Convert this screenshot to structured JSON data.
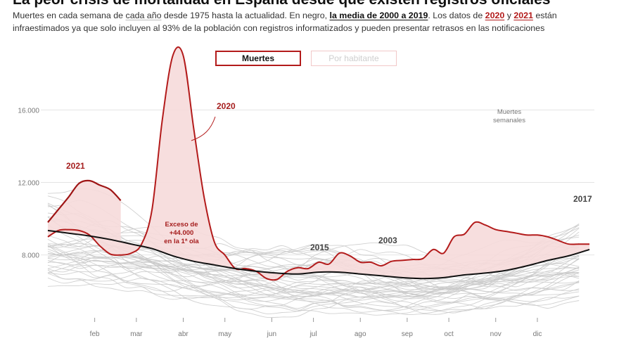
{
  "title": "La peor crisis de mortalidad en España desde que existen registros oficiales",
  "subtitle": {
    "p1": "Muertes en cada semana de ",
    "link_years": "cada año",
    "p2": " desde 1975 hasta la actualidad. En negro, ",
    "link_mean": "la media de 2000 a 2019",
    "p3": ". Los datos de ",
    "link_2020": "2020",
    "p4": " y ",
    "link_2021": "2021",
    "p5": " están infraestimados ya que solo incluyen al 93% de la población con registros informatizados y pueden presentar retrasos en las notificaciones"
  },
  "toggles": {
    "deaths": "Muertes",
    "per_capita": "Por habitante"
  },
  "colors": {
    "highlight_red": "#b31b1b",
    "mean_black": "#111111",
    "background_years": "#c9c9c9",
    "excess_fill": "#f6dada"
  },
  "chart_data": {
    "type": "line",
    "ylim": [
      5000,
      17800
    ],
    "y_ticks": [
      {
        "value": 8000,
        "label": "8.000"
      },
      {
        "value": 12000,
        "label": "12.000"
      },
      {
        "value": 16000,
        "label": "16.000"
      }
    ],
    "x_ticks": [
      {
        "week": 5.5,
        "label": "feb"
      },
      {
        "week": 9.5,
        "label": "mar"
      },
      {
        "week": 14,
        "label": "abr"
      },
      {
        "week": 18,
        "label": "may"
      },
      {
        "week": 22.5,
        "label": "jun"
      },
      {
        "week": 26.5,
        "label": "jul"
      },
      {
        "week": 31,
        "label": "ago"
      },
      {
        "week": 35.5,
        "label": "sep"
      },
      {
        "week": 39.5,
        "label": "oct"
      },
      {
        "week": 44,
        "label": "nov"
      },
      {
        "week": 48,
        "label": "dic"
      }
    ],
    "xlim": [
      1,
      53
    ],
    "series": [
      {
        "name": "2020",
        "x": [
          1,
          2,
          3,
          4,
          5,
          6,
          7,
          8,
          9,
          10,
          11,
          12,
          13,
          14,
          15,
          16,
          17,
          18,
          19,
          20,
          21,
          22,
          23,
          24,
          25,
          26,
          27,
          28,
          29,
          30,
          31,
          32,
          33,
          34,
          35,
          36,
          37,
          38,
          39,
          40,
          41,
          42,
          43,
          44,
          45,
          46,
          47,
          48,
          49,
          50,
          51,
          52,
          53
        ],
        "values": [
          9000,
          9350,
          9400,
          9350,
          9100,
          8500,
          8050,
          8000,
          8100,
          8600,
          10500,
          15500,
          19000,
          19000,
          15000,
          11200,
          8700,
          8000,
          7250,
          7250,
          7100,
          6700,
          6650,
          7100,
          7300,
          7250,
          7600,
          7500,
          8100,
          7950,
          7600,
          7600,
          7400,
          7650,
          7700,
          7750,
          7800,
          8300,
          8100,
          9000,
          9150,
          9800,
          9650,
          9400,
          9300,
          9200,
          9100,
          9100,
          9000,
          8800,
          8600,
          8600,
          8600
        ]
      },
      {
        "name": "2021",
        "x": [
          1,
          2,
          3,
          4,
          5,
          6,
          7,
          8
        ],
        "values": [
          9800,
          10500,
          11200,
          11950,
          12100,
          11850,
          11600,
          11000
        ]
      },
      {
        "name": "Media 2000-2019",
        "x": [
          1,
          3,
          5,
          7,
          9,
          11,
          13,
          15,
          17,
          19,
          21,
          23,
          25,
          27,
          29,
          31,
          33,
          35,
          37,
          39,
          41,
          43,
          45,
          47,
          49,
          51,
          53
        ],
        "values": [
          9350,
          9200,
          9050,
          8850,
          8600,
          8350,
          7950,
          7650,
          7450,
          7250,
          7100,
          7000,
          6950,
          7050,
          7050,
          6950,
          6850,
          6750,
          6700,
          6750,
          6900,
          7000,
          7150,
          7400,
          7700,
          7950,
          8300
        ]
      }
    ],
    "annotations": {
      "label_2020": "2020",
      "label_2021": "2021",
      "label_2017": "2017",
      "label_2015": "2015",
      "label_2003": "2003",
      "excess_line1": "Exceso de",
      "excess_line2": "+44.000",
      "excess_line3": "en la 1ª ola",
      "weekly_line1": "Muertes",
      "weekly_line2": "semanales"
    },
    "grid": true
  }
}
